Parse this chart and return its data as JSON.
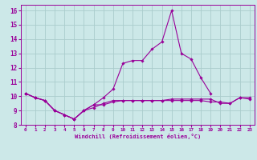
{
  "xlabel": "Windchill (Refroidissement éolien,°C)",
  "background_color": "#cce8e8",
  "grid_color": "#aacccc",
  "line_color": "#990099",
  "x": [
    0,
    1,
    2,
    3,
    4,
    5,
    6,
    7,
    8,
    9,
    10,
    11,
    12,
    13,
    14,
    15,
    16,
    17,
    18,
    19,
    20,
    21,
    22,
    23
  ],
  "series": [
    [
      10.2,
      9.9,
      9.7,
      9.0,
      8.7,
      8.4,
      9.0,
      9.4,
      9.4,
      9.6,
      9.7,
      9.7,
      9.7,
      9.7,
      9.7,
      9.7,
      9.7,
      9.7,
      9.7,
      9.6,
      9.6,
      9.5,
      9.9,
      9.8
    ],
    [
      10.2,
      9.9,
      9.7,
      9.0,
      8.7,
      8.4,
      9.0,
      9.4,
      9.9,
      10.5,
      12.3,
      12.5,
      12.5,
      13.3,
      13.8,
      16.0,
      13.0,
      12.6,
      11.3,
      10.2,
      null,
      null,
      null,
      null
    ],
    [
      10.2,
      9.9,
      9.7,
      9.0,
      8.7,
      8.4,
      9.0,
      9.2,
      9.5,
      9.7,
      9.7,
      9.7,
      9.7,
      9.7,
      9.7,
      9.8,
      9.8,
      9.8,
      9.8,
      9.8,
      9.5,
      9.5,
      9.9,
      9.9
    ]
  ],
  "ylim": [
    8,
    16.4
  ],
  "xlim": [
    -0.5,
    23.5
  ],
  "yticks": [
    8,
    9,
    10,
    11,
    12,
    13,
    14,
    15,
    16
  ],
  "xticks": [
    0,
    1,
    2,
    3,
    4,
    5,
    6,
    7,
    8,
    9,
    10,
    11,
    12,
    13,
    14,
    15,
    16,
    17,
    18,
    19,
    20,
    21,
    22,
    23
  ],
  "ytick_fontsize": 5.5,
  "xtick_fontsize": 4.2,
  "xlabel_fontsize": 5.0,
  "linewidth": 0.8,
  "markersize": 1.8
}
